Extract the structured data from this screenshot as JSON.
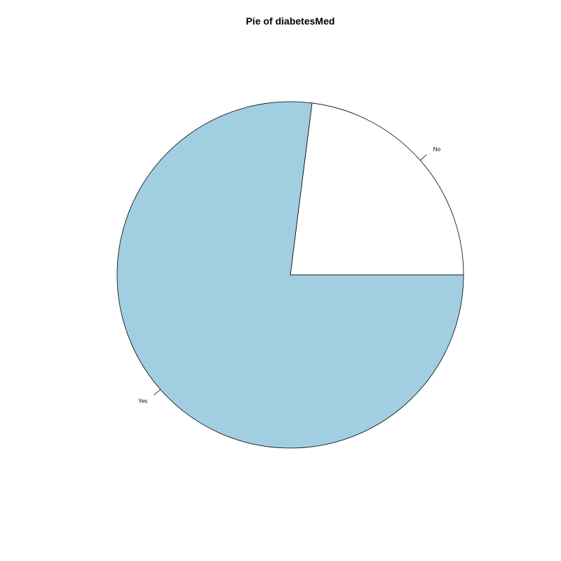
{
  "chart_data": {
    "type": "pie",
    "title": "Pie of diabetesMed",
    "start_angle_deg": 0,
    "direction": "counterclockwise",
    "categories": [
      "No",
      "Yes"
    ],
    "values": [
      0.23,
      0.77
    ],
    "colors": [
      "#ffffff",
      "#a1cfe1"
    ],
    "outline_color": "#000000",
    "background": "#ffffff"
  }
}
